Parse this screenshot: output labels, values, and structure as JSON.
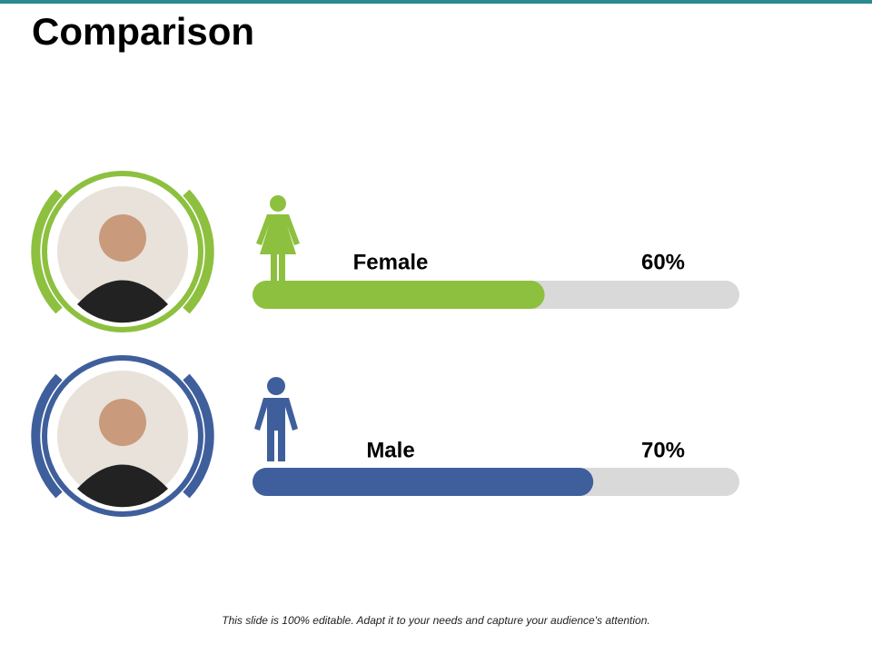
{
  "chart_data": {
    "type": "progress-bar",
    "title": "Comparison",
    "categories": [
      "Female",
      "Male"
    ],
    "values": [
      60,
      70
    ],
    "value_labels": [
      "60%",
      "70%"
    ],
    "colors": [
      "#8dc03f",
      "#3f5f9c"
    ],
    "track_color": "#d9d9d9",
    "xlim": [
      0,
      100
    ],
    "footer": "This slide is 100% editable. Adapt it to your needs and capture your audience's attention."
  }
}
